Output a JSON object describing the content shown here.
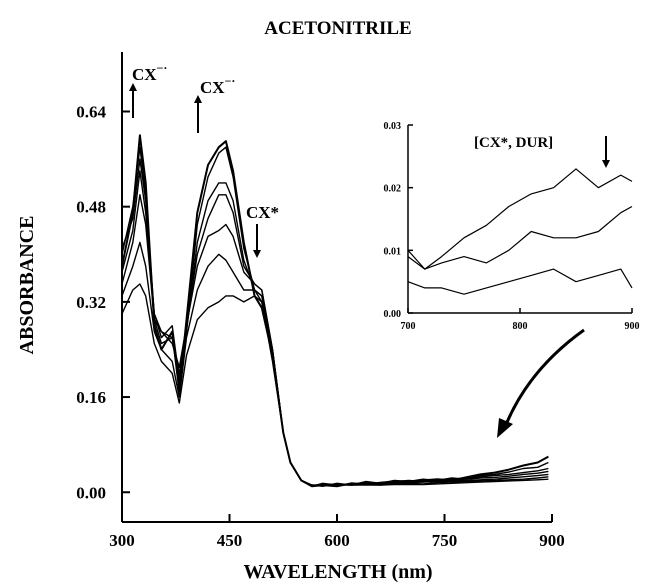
{
  "chart_data": {
    "type": "line",
    "title": "ACETONITRILE",
    "xlabel": "WAVELENGTH (nm)",
    "ylabel": "ABSORBANCE",
    "xlim": [
      300,
      900
    ],
    "ylim": [
      -0.05,
      0.74
    ],
    "xticks": [
      "300",
      "450",
      "600",
      "750",
      "900"
    ],
    "yticks": [
      "0.00",
      "0.16",
      "0.32",
      "0.48",
      "0.64"
    ],
    "xtick_values": [
      300,
      450,
      600,
      750,
      900
    ],
    "ytick_values": [
      0.0,
      0.16,
      0.32,
      0.48,
      0.64
    ],
    "grid": false,
    "legend": "none",
    "line_color": "#000000",
    "annotations": [
      {
        "text": "CX",
        "superscript": "−·",
        "x": 325,
        "y": 0.64,
        "arrow": "up"
      },
      {
        "text": "CX",
        "superscript": "−·",
        "x": 420,
        "y": 0.62,
        "arrow": "up"
      },
      {
        "text": "CX*",
        "x": 487,
        "y": 0.4,
        "arrow": "down"
      }
    ],
    "x": [
      300,
      315,
      325,
      333,
      345,
      355,
      370,
      380,
      390,
      405,
      420,
      435,
      445,
      455,
      470,
      485,
      495,
      510,
      525,
      535,
      550,
      565,
      580,
      600,
      620,
      640,
      660,
      680,
      700,
      720,
      740,
      760,
      780,
      800,
      820,
      840,
      860,
      880,
      895
    ],
    "series": [
      {
        "values": [
          0.38,
          0.47,
          0.6,
          0.52,
          0.28,
          0.24,
          0.27,
          0.17,
          0.29,
          0.47,
          0.55,
          0.58,
          0.59,
          0.54,
          0.42,
          0.33,
          0.31,
          0.23,
          0.1,
          0.05,
          0.02,
          0.01,
          0.012,
          0.01,
          0.015,
          0.013,
          0.016,
          0.018,
          0.016,
          0.02,
          0.022,
          0.02,
          0.025,
          0.03,
          0.033,
          0.038,
          0.045,
          0.05,
          0.06
        ]
      },
      {
        "values": [
          0.4,
          0.48,
          0.58,
          0.5,
          0.29,
          0.27,
          0.26,
          0.2,
          0.27,
          0.45,
          0.53,
          0.57,
          0.58,
          0.53,
          0.41,
          0.34,
          0.32,
          0.23,
          0.1,
          0.05,
          0.02,
          0.012,
          0.01,
          0.015,
          0.012,
          0.018,
          0.015,
          0.02,
          0.018,
          0.022,
          0.02,
          0.024,
          0.022,
          0.028,
          0.03,
          0.034,
          0.04,
          0.042,
          0.05
        ]
      },
      {
        "values": [
          0.41,
          0.46,
          0.56,
          0.49,
          0.3,
          0.26,
          0.28,
          0.19,
          0.27,
          0.42,
          0.49,
          0.52,
          0.52,
          0.49,
          0.39,
          0.34,
          0.33,
          0.24,
          0.1,
          0.05,
          0.02,
          0.01,
          0.015,
          0.012,
          0.014,
          0.016,
          0.015,
          0.018,
          0.02,
          0.018,
          0.021,
          0.022,
          0.024,
          0.026,
          0.028,
          0.03,
          0.033,
          0.036,
          0.04
        ]
      },
      {
        "values": [
          0.37,
          0.44,
          0.54,
          0.47,
          0.3,
          0.27,
          0.25,
          0.21,
          0.28,
          0.4,
          0.46,
          0.5,
          0.5,
          0.47,
          0.38,
          0.35,
          0.34,
          0.24,
          0.1,
          0.05,
          0.02,
          0.012,
          0.012,
          0.014,
          0.012,
          0.015,
          0.014,
          0.016,
          0.018,
          0.017,
          0.02,
          0.021,
          0.022,
          0.024,
          0.025,
          0.027,
          0.03,
          0.032,
          0.035
        ]
      },
      {
        "values": [
          0.35,
          0.42,
          0.5,
          0.45,
          0.29,
          0.25,
          0.26,
          0.18,
          0.28,
          0.38,
          0.43,
          0.44,
          0.45,
          0.43,
          0.37,
          0.35,
          0.34,
          0.24,
          0.1,
          0.05,
          0.02,
          0.01,
          0.013,
          0.012,
          0.013,
          0.014,
          0.013,
          0.015,
          0.016,
          0.017,
          0.018,
          0.019,
          0.02,
          0.021,
          0.022,
          0.024,
          0.026,
          0.028,
          0.03
        ]
      },
      {
        "values": [
          0.33,
          0.38,
          0.42,
          0.38,
          0.27,
          0.24,
          0.22,
          0.16,
          0.26,
          0.34,
          0.38,
          0.4,
          0.39,
          0.37,
          0.34,
          0.34,
          0.33,
          0.23,
          0.1,
          0.05,
          0.02,
          0.012,
          0.012,
          0.013,
          0.012,
          0.013,
          0.012,
          0.014,
          0.015,
          0.014,
          0.016,
          0.017,
          0.018,
          0.019,
          0.02,
          0.021,
          0.022,
          0.024,
          0.026
        ]
      },
      {
        "values": [
          0.3,
          0.34,
          0.35,
          0.33,
          0.25,
          0.22,
          0.2,
          0.15,
          0.23,
          0.29,
          0.31,
          0.32,
          0.33,
          0.33,
          0.32,
          0.33,
          0.32,
          0.22,
          0.1,
          0.05,
          0.02,
          0.01,
          0.012,
          0.012,
          0.012,
          0.012,
          0.012,
          0.013,
          0.013,
          0.013,
          0.014,
          0.015,
          0.016,
          0.017,
          0.018,
          0.019,
          0.02,
          0.021,
          0.022
        ]
      }
    ],
    "inset": {
      "type": "line",
      "xlim": [
        700,
        900
      ],
      "ylim": [
        0,
        0.03
      ],
      "xticks": [
        "700",
        "800",
        "900"
      ],
      "yticks": [
        "0.00",
        "0.01",
        "0.02",
        "0.03"
      ],
      "xtick_values": [
        700,
        800,
        900
      ],
      "ytick_values": [
        0.0,
        0.01,
        0.02,
        0.03
      ],
      "annotation": {
        "text": "[CX*, DUR]",
        "x": 870,
        "y": 0.024,
        "arrow": "down"
      },
      "x": [
        700,
        715,
        730,
        750,
        770,
        790,
        810,
        830,
        850,
        870,
        890,
        900
      ],
      "series": [
        {
          "values": [
            0.01,
            0.007,
            0.009,
            0.012,
            0.014,
            0.017,
            0.019,
            0.02,
            0.023,
            0.02,
            0.022,
            0.021
          ]
        },
        {
          "values": [
            0.009,
            0.007,
            0.008,
            0.009,
            0.008,
            0.01,
            0.013,
            0.012,
            0.012,
            0.013,
            0.016,
            0.017
          ]
        },
        {
          "values": [
            0.005,
            0.004,
            0.004,
            0.003,
            0.004,
            0.005,
            0.006,
            0.007,
            0.005,
            0.006,
            0.007,
            0.004
          ]
        }
      ]
    }
  }
}
